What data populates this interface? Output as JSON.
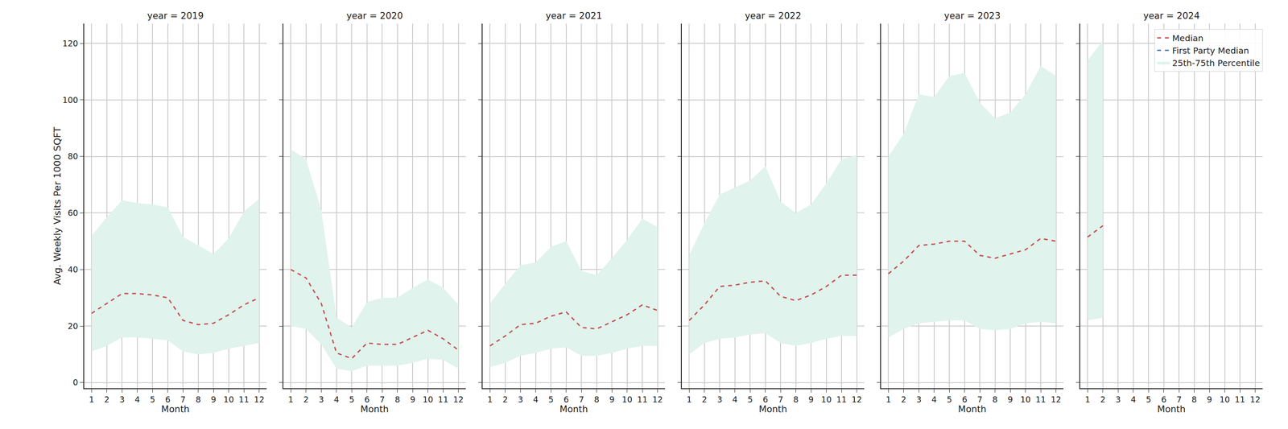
{
  "chart_data": [
    {
      "type": "line",
      "title": "year = 2019",
      "x_label": "Month",
      "y_label": "Avg. Weekly Visits Per 1000 SQFT",
      "x": [
        1,
        2,
        3,
        4,
        5,
        6,
        7,
        8,
        9,
        10,
        11,
        12
      ],
      "xlim": [
        0.5,
        12.5
      ],
      "xticks": [
        1,
        2,
        3,
        4,
        5,
        6,
        7,
        8,
        9,
        10,
        11,
        12
      ],
      "ylim": [
        -2,
        127
      ],
      "yticks": [
        0,
        20,
        40,
        60,
        80,
        100,
        120
      ],
      "grid": true,
      "series": [
        {
          "name": "Median",
          "color": "#c44e52",
          "line_style": "dashed",
          "values": [
            24.5,
            28,
            31.5,
            31.5,
            31,
            30,
            22,
            20.5,
            21,
            24,
            27.5,
            30
          ]
        },
        {
          "name": "First Party Median",
          "color": "#4c72b0",
          "line_style": "dashed",
          "values": [
            null,
            null,
            null,
            null,
            null,
            null,
            null,
            null,
            null,
            null,
            null,
            null
          ]
        },
        {
          "name": "25th-75th Percentile",
          "type": "area",
          "color": "#e0f3ec",
          "lower": [
            11,
            13,
            16,
            16,
            15.5,
            15,
            11,
            10,
            10.5,
            12,
            13,
            14
          ],
          "upper": [
            52,
            58.5,
            64.5,
            63.5,
            63,
            62,
            51.5,
            48.5,
            45.5,
            51,
            60.5,
            65
          ]
        }
      ]
    },
    {
      "type": "line",
      "title": "year = 2020",
      "x_label": "Month",
      "tick_labels": "x",
      "x": [
        1,
        2,
        3,
        4,
        5,
        6,
        7,
        8,
        9,
        10,
        11,
        12
      ],
      "xlim": [
        0.5,
        12.5
      ],
      "xticks": [
        1,
        2,
        3,
        4,
        5,
        6,
        7,
        8,
        9,
        10,
        11,
        12
      ],
      "ylim": [
        -2,
        127
      ],
      "yticks": [
        0,
        20,
        40,
        60,
        80,
        100,
        120
      ],
      "grid": true,
      "series": [
        {
          "name": "Median",
          "color": "#c44e52",
          "line_style": "dashed",
          "values": [
            40,
            37,
            28,
            10.5,
            8.5,
            14,
            13.5,
            13.5,
            16,
            18.5,
            15.5,
            11.5
          ]
        },
        {
          "name": "First Party Median",
          "color": "#4c72b0",
          "line_style": "dashed",
          "values": [
            null,
            null,
            null,
            null,
            null,
            null,
            null,
            null,
            null,
            null,
            null,
            null
          ]
        },
        {
          "name": "25th-75th Percentile",
          "type": "area",
          "color": "#e0f3ec",
          "lower": [
            20,
            19,
            13.5,
            5,
            4,
            6,
            6,
            6,
            7,
            8.5,
            8,
            5
          ],
          "upper": [
            82.5,
            79,
            61,
            23,
            19.5,
            28.5,
            30,
            30,
            33.5,
            36.5,
            33.5,
            27.5
          ]
        }
      ]
    },
    {
      "type": "line",
      "title": "year = 2021",
      "x_label": "Month",
      "tick_labels": "x",
      "x": [
        1,
        2,
        3,
        4,
        5,
        6,
        7,
        8,
        9,
        10,
        11,
        12
      ],
      "xlim": [
        0.5,
        12.5
      ],
      "xticks": [
        1,
        2,
        3,
        4,
        5,
        6,
        7,
        8,
        9,
        10,
        11,
        12
      ],
      "ylim": [
        -2,
        127
      ],
      "yticks": [
        0,
        20,
        40,
        60,
        80,
        100,
        120
      ],
      "grid": true,
      "series": [
        {
          "name": "Median",
          "color": "#c44e52",
          "line_style": "dashed",
          "values": [
            13,
            16.5,
            20.5,
            21,
            23.5,
            25,
            19.5,
            19,
            21.5,
            24,
            27.5,
            25.5
          ]
        },
        {
          "name": "First Party Median",
          "color": "#4c72b0",
          "line_style": "dashed",
          "values": [
            null,
            null,
            null,
            null,
            null,
            null,
            null,
            null,
            null,
            null,
            null,
            null
          ]
        },
        {
          "name": "25th-75th Percentile",
          "type": "area",
          "color": "#e0f3ec",
          "lower": [
            5.5,
            7,
            9.5,
            10.5,
            12,
            12.5,
            9.5,
            9.5,
            10.5,
            12,
            13,
            13
          ],
          "upper": [
            28,
            35,
            41.5,
            42.5,
            48,
            50,
            39.5,
            38,
            44,
            50.5,
            58,
            55
          ]
        }
      ]
    },
    {
      "type": "line",
      "title": "year = 2022",
      "x_label": "Month",
      "tick_labels": "x",
      "x": [
        1,
        2,
        3,
        4,
        5,
        6,
        7,
        8,
        9,
        10,
        11,
        12
      ],
      "xlim": [
        0.5,
        12.5
      ],
      "xticks": [
        1,
        2,
        3,
        4,
        5,
        6,
        7,
        8,
        9,
        10,
        11,
        12
      ],
      "ylim": [
        -2,
        127
      ],
      "yticks": [
        0,
        20,
        40,
        60,
        80,
        100,
        120
      ],
      "grid": true,
      "series": [
        {
          "name": "Median",
          "color": "#c44e52",
          "line_style": "dashed",
          "values": [
            22,
            27.5,
            34,
            34.5,
            35.5,
            36,
            30.5,
            29,
            31,
            34,
            38,
            38
          ]
        },
        {
          "name": "First Party Median",
          "color": "#4c72b0",
          "line_style": "dashed",
          "values": [
            null,
            null,
            null,
            null,
            null,
            null,
            null,
            null,
            null,
            null,
            null,
            null
          ]
        },
        {
          "name": "25th-75th Percentile",
          "type": "area",
          "color": "#e0f3ec",
          "lower": [
            10,
            14,
            15.5,
            16,
            17,
            17.5,
            14,
            13,
            14,
            15.5,
            16.5,
            16.5
          ],
          "upper": [
            45,
            56.5,
            66.5,
            69,
            71.5,
            76.5,
            64,
            60,
            63,
            70.5,
            79,
            80.5
          ]
        }
      ]
    },
    {
      "type": "line",
      "title": "year = 2023",
      "x_label": "Month",
      "tick_labels": "x",
      "x": [
        1,
        2,
        3,
        4,
        5,
        6,
        7,
        8,
        9,
        10,
        11,
        12
      ],
      "xlim": [
        0.5,
        12.5
      ],
      "xticks": [
        1,
        2,
        3,
        4,
        5,
        6,
        7,
        8,
        9,
        10,
        11,
        12
      ],
      "ylim": [
        -2,
        127
      ],
      "yticks": [
        0,
        20,
        40,
        60,
        80,
        100,
        120
      ],
      "grid": true,
      "series": [
        {
          "name": "Median",
          "color": "#c44e52",
          "line_style": "dashed",
          "values": [
            38.5,
            43,
            48.5,
            49,
            50,
            50,
            45,
            44,
            45.5,
            47,
            51,
            50
          ]
        },
        {
          "name": "First Party Median",
          "color": "#4c72b0",
          "line_style": "dashed",
          "values": [
            null,
            null,
            null,
            null,
            null,
            null,
            null,
            null,
            null,
            null,
            null,
            null
          ]
        },
        {
          "name": "25th-75th Percentile",
          "type": "area",
          "color": "#e0f3ec",
          "lower": [
            16,
            19,
            21,
            21.5,
            22,
            22,
            19,
            18.5,
            19,
            21,
            21.5,
            21
          ],
          "upper": [
            80,
            88,
            102,
            101,
            108.5,
            109.5,
            99,
            93.5,
            95.5,
            102,
            112,
            108.5
          ]
        }
      ]
    },
    {
      "type": "line",
      "title": "year = 2024",
      "x_label": "Month",
      "tick_labels": "x",
      "legend": "upper right",
      "x": [
        1,
        2,
        3,
        4,
        5,
        6,
        7,
        8,
        9,
        10,
        11,
        12
      ],
      "xlim": [
        0.5,
        12.5
      ],
      "xticks": [
        1,
        2,
        3,
        4,
        5,
        6,
        7,
        8,
        9,
        10,
        11,
        12
      ],
      "ylim": [
        -2,
        127
      ],
      "yticks": [
        0,
        20,
        40,
        60,
        80,
        100,
        120
      ],
      "grid": true,
      "series": [
        {
          "name": "Median",
          "color": "#c44e52",
          "line_style": "dashed",
          "values": [
            51.5,
            55.5,
            null,
            null,
            null,
            null,
            null,
            null,
            null,
            null,
            null,
            null
          ]
        },
        {
          "name": "First Party Median",
          "color": "#4c72b0",
          "line_style": "dashed",
          "values": [
            null,
            null,
            null,
            null,
            null,
            null,
            null,
            null,
            null,
            null,
            null,
            null
          ]
        },
        {
          "name": "25th-75th Percentile",
          "type": "area",
          "color": "#e0f3ec",
          "lower": [
            22,
            23,
            null,
            null,
            null,
            null,
            null,
            null,
            null,
            null,
            null,
            null
          ],
          "upper": [
            114,
            121,
            null,
            null,
            null,
            null,
            null,
            null,
            null,
            null,
            null,
            null
          ]
        }
      ]
    }
  ]
}
